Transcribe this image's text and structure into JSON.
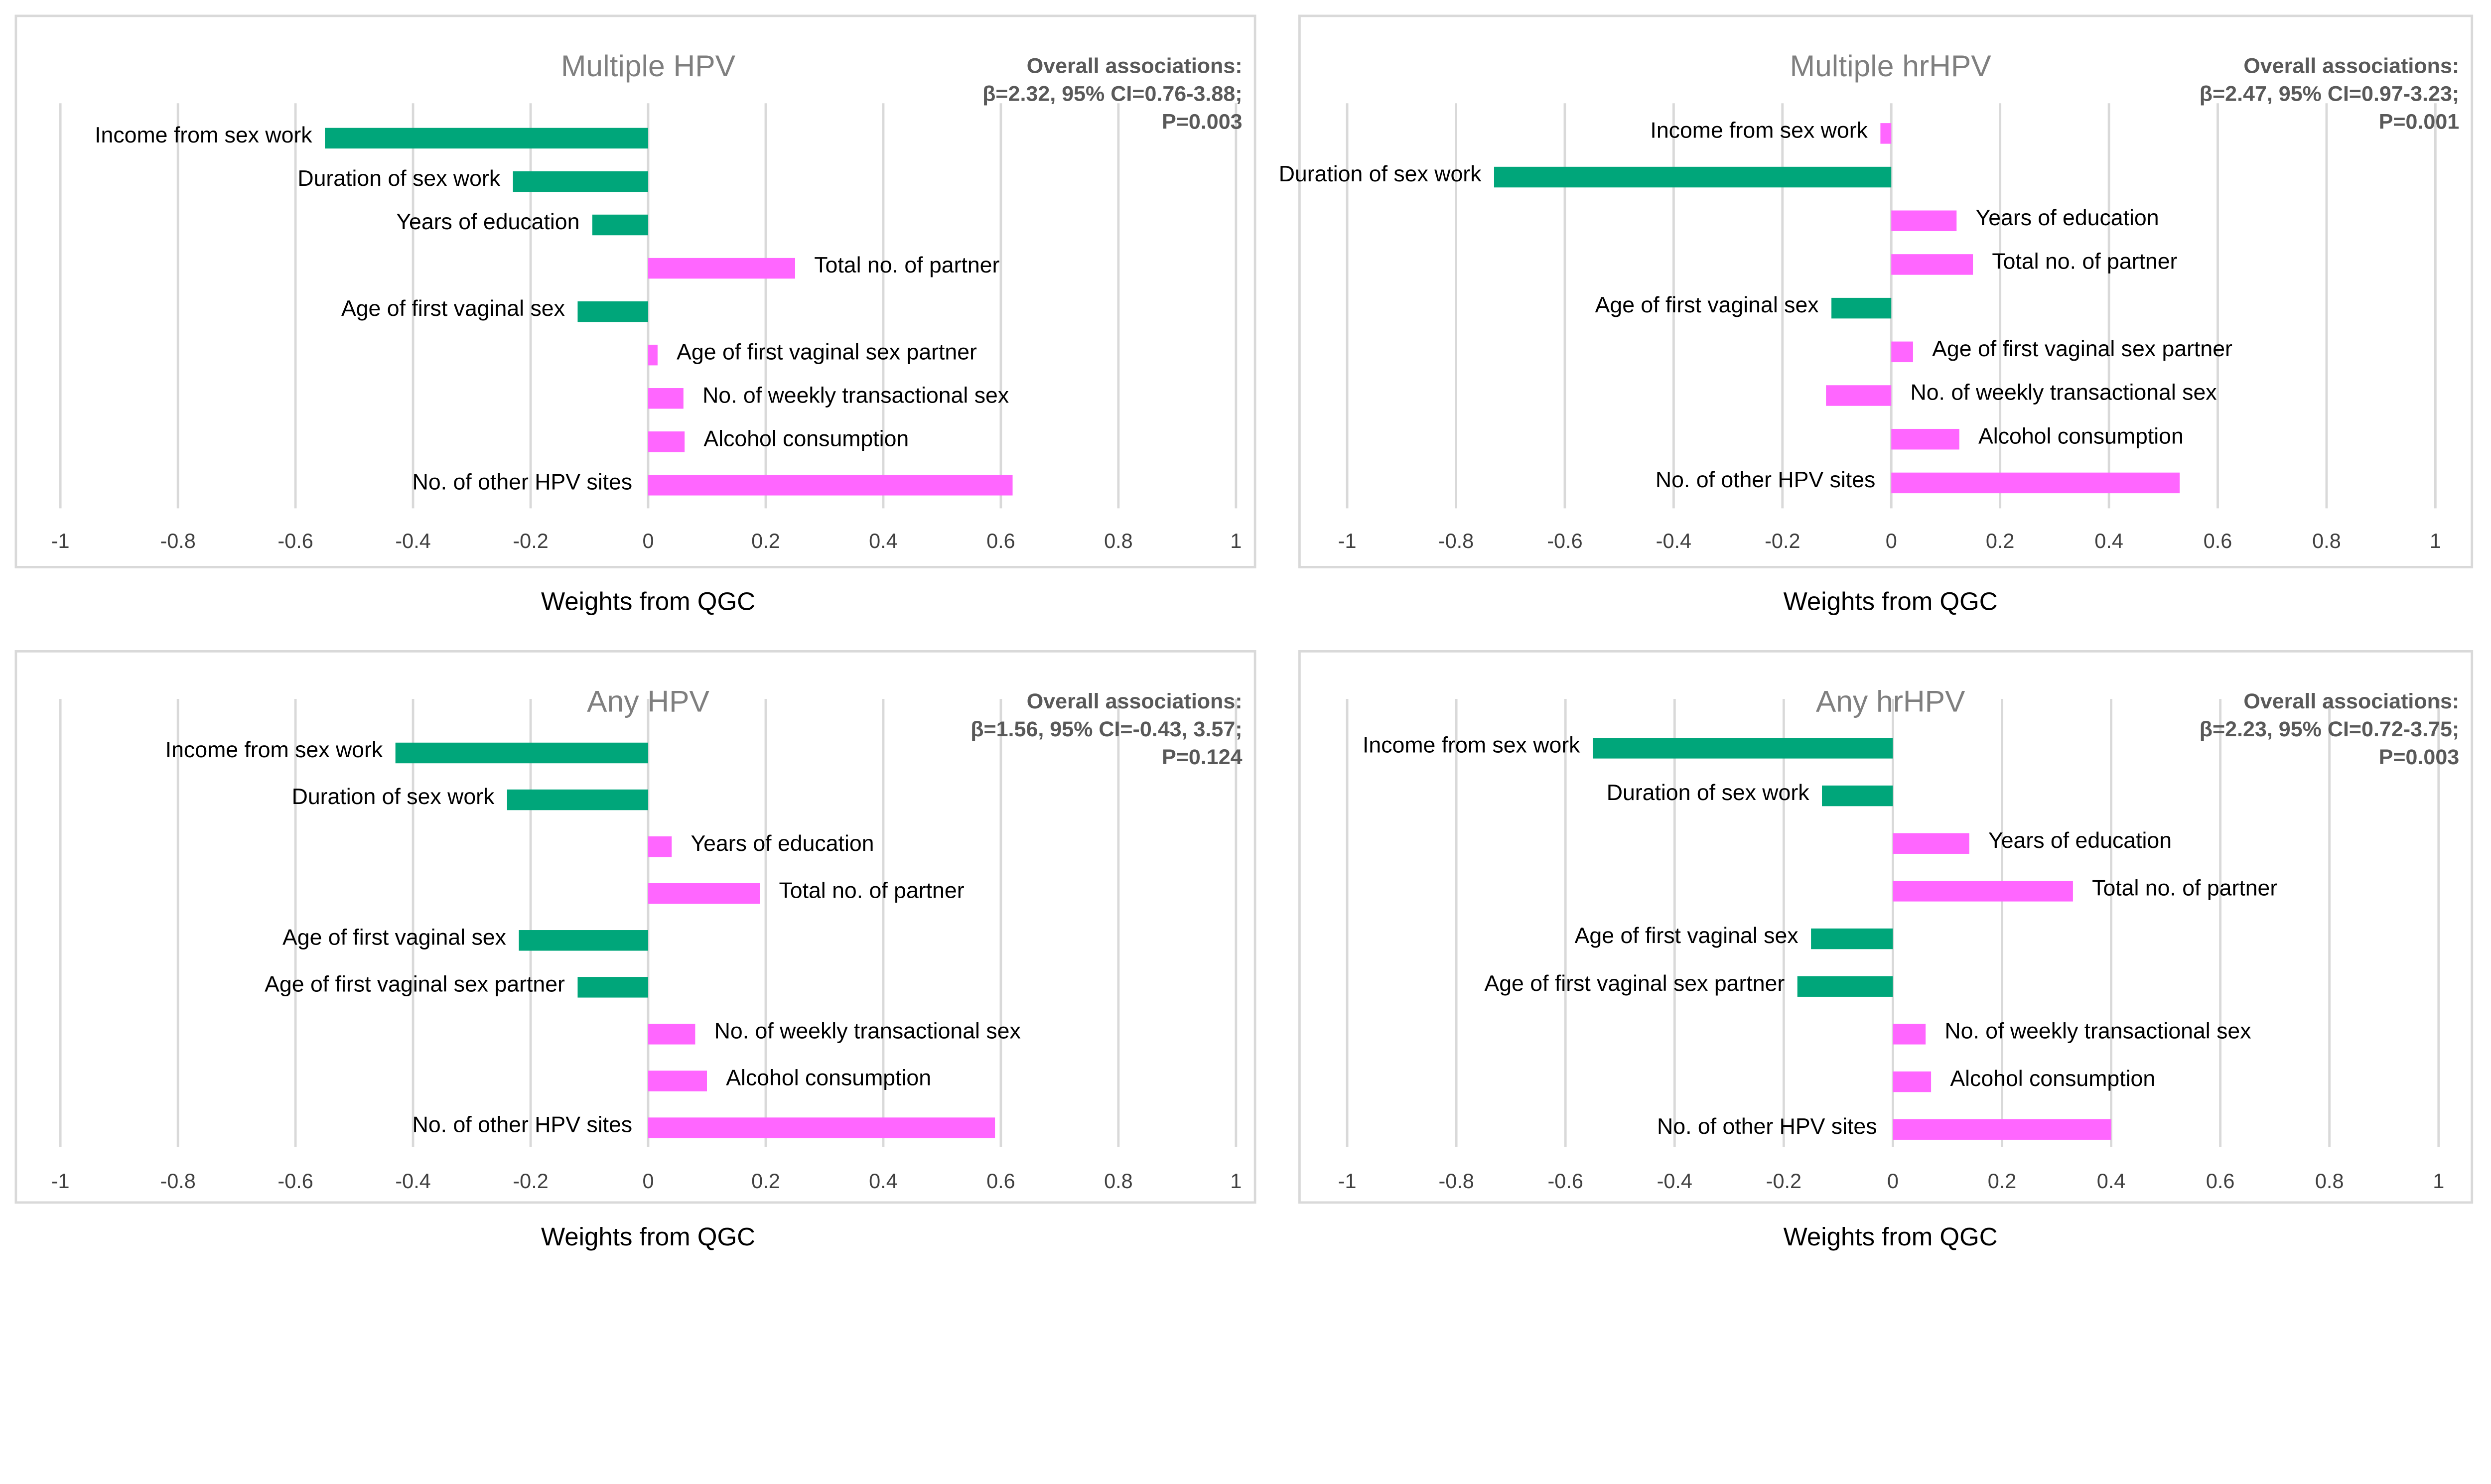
{
  "chart_data": [
    {
      "type": "bar",
      "orientation": "horizontal",
      "title": "Multiple HPV",
      "annotation": [
        "Overall associations:",
        "β=2.32, 95% CI=0.76-3.88;",
        "P=0.003"
      ],
      "xlabel": "Weights from QGC",
      "xlim": [
        -1,
        1
      ],
      "xticks": [
        "-1",
        "-0.8",
        "-0.6",
        "-0.4",
        "-0.2",
        "0",
        "0.2",
        "0.4",
        "0.6",
        "0.8",
        "1"
      ],
      "grid": true,
      "categories": [
        "Income from sex work",
        "Duration of sex work",
        "Years of education",
        "Total no. of partner",
        "Age of first vaginal sex",
        "Age of first vaginal sex partner",
        "No. of weekly transactional sex",
        "Alcohol consumption",
        "No. of other HPV sites"
      ],
      "values": [
        -0.55,
        -0.23,
        -0.095,
        0.25,
        -0.12,
        0.016,
        0.06,
        0.062,
        0.62
      ],
      "bar_colors": [
        "#00A67A",
        "#00A67A",
        "#00A67A",
        "#FF66FF",
        "#00A67A",
        "#FF66FF",
        "#FF66FF",
        "#FF66FF",
        "#FF66FF"
      ]
    },
    {
      "type": "bar",
      "orientation": "horizontal",
      "title": "Multiple hrHPV",
      "annotation": [
        "Overall associations:",
        "β=2.47, 95% CI=0.97-3.23;",
        "P=0.001"
      ],
      "xlabel": "Weights from QGC",
      "xlim": [
        -1,
        1
      ],
      "xticks": [
        "-1",
        "-0.8",
        "-0.6",
        "-0.4",
        "-0.2",
        "0",
        "0.2",
        "0.4",
        "0.6",
        "0.8",
        "1"
      ],
      "grid": true,
      "categories": [
        "Income from sex work",
        "Duration of sex work",
        "Years of education",
        "Total no. of partner",
        "Age of first vaginal sex",
        "Age of first vaginal sex partner",
        "No. of weekly transactional sex",
        "Alcohol consumption",
        "No. of other HPV sites"
      ],
      "values": [
        -0.02,
        -0.73,
        0.12,
        0.15,
        -0.11,
        0.04,
        -0.12,
        0.125,
        0.53
      ],
      "bar_colors": [
        "#FF66FF",
        "#00A67A",
        "#FF66FF",
        "#FF66FF",
        "#00A67A",
        "#FF66FF",
        "#FF66FF",
        "#FF66FF",
        "#FF66FF"
      ]
    },
    {
      "type": "bar",
      "orientation": "horizontal",
      "title": "Any HPV",
      "annotation": [
        "Overall associations:",
        "β=1.56, 95% CI=-0.43, 3.57;",
        "P=0.124"
      ],
      "xlabel": "Weights from QGC",
      "xlim": [
        -1,
        1
      ],
      "xticks": [
        "-1",
        "-0.8",
        "-0.6",
        "-0.4",
        "-0.2",
        "0",
        "0.2",
        "0.4",
        "0.6",
        "0.8",
        "1"
      ],
      "grid": true,
      "categories": [
        "Income from sex work",
        "Duration of sex work",
        "Years of education",
        "Total no. of partner",
        "Age of first vaginal sex",
        "Age of first vaginal sex partner",
        "No. of weekly transactional sex",
        "Alcohol consumption",
        "No. of other HPV sites"
      ],
      "values": [
        -0.43,
        -0.24,
        0.04,
        0.19,
        -0.22,
        -0.12,
        0.08,
        0.1,
        0.59
      ],
      "bar_colors": [
        "#00A67A",
        "#00A67A",
        "#FF66FF",
        "#FF66FF",
        "#00A67A",
        "#00A67A",
        "#FF66FF",
        "#FF66FF",
        "#FF66FF"
      ]
    },
    {
      "type": "bar",
      "orientation": "horizontal",
      "title": "Any hrHPV",
      "annotation": [
        "Overall associations:",
        "β=2.23, 95% CI=0.72-3.75;",
        "P=0.003"
      ],
      "xlabel": "Weights from QGC",
      "xlim": [
        -1,
        1
      ],
      "xticks": [
        "-1",
        "-0.8",
        "-0.6",
        "-0.4",
        "-0.2",
        "0",
        "0.2",
        "0.4",
        "0.6",
        "0.8",
        "1"
      ],
      "grid": true,
      "categories": [
        "Income from sex work",
        "Duration of sex work",
        "Years of education",
        "Total no. of partner",
        "Age of first vaginal sex",
        "Age of first vaginal sex partner",
        "No. of weekly transactional sex",
        "Alcohol consumption",
        "No. of other HPV sites"
      ],
      "values": [
        -0.55,
        -0.13,
        0.14,
        0.33,
        -0.15,
        -0.175,
        0.06,
        0.07,
        0.4
      ],
      "bar_colors": [
        "#00A67A",
        "#00A67A",
        "#FF66FF",
        "#FF66FF",
        "#00A67A",
        "#00A67A",
        "#FF66FF",
        "#FF66FF",
        "#FF66FF"
      ]
    }
  ]
}
